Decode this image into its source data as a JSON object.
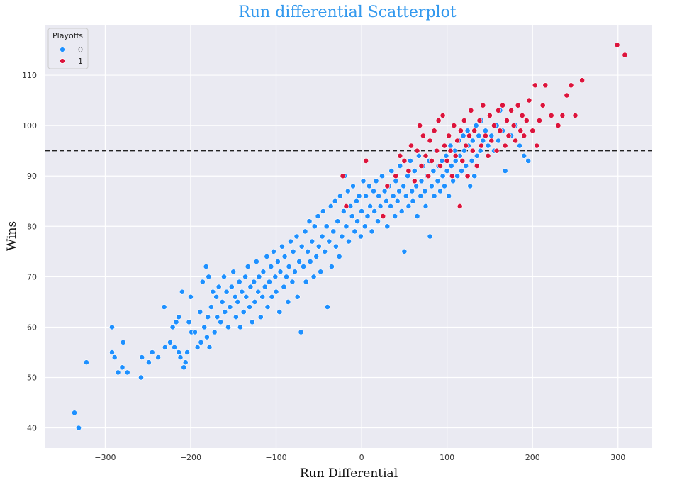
{
  "chart_data": {
    "type": "scatter",
    "title": "Run differential Scatterplot",
    "xlabel": "Run Differential",
    "ylabel": "Wins",
    "xlim": [
      -370,
      340
    ],
    "ylim": [
      36,
      120
    ],
    "xticks": [
      -300,
      -200,
      -100,
      0,
      100,
      200,
      300
    ],
    "yticks": [
      40,
      50,
      60,
      70,
      80,
      90,
      100,
      110
    ],
    "grid": true,
    "legend": {
      "title": "Playoffs",
      "placement": "top-left",
      "entries": [
        {
          "label": "0",
          "color": "#1e90ff"
        },
        {
          "label": "1",
          "color": "#dc143c"
        }
      ]
    },
    "reference_line": {
      "y": 95,
      "style": "dashed",
      "color": "#222222"
    },
    "series": [
      {
        "name": "0",
        "color": "#1e90ff",
        "points": [
          [
            -336,
            43
          ],
          [
            -331,
            40
          ],
          [
            -322,
            53
          ],
          [
            -292,
            60
          ],
          [
            -292,
            55
          ],
          [
            -289,
            54
          ],
          [
            -285,
            51
          ],
          [
            -280,
            52
          ],
          [
            -279,
            57
          ],
          [
            -274,
            51
          ],
          [
            -258,
            50
          ],
          [
            -257,
            54
          ],
          [
            -249,
            53
          ],
          [
            -245,
            55
          ],
          [
            -238,
            54
          ],
          [
            -231,
            64
          ],
          [
            -230,
            56
          ],
          [
            -224,
            57
          ],
          [
            -221,
            60
          ],
          [
            -219,
            56
          ],
          [
            -217,
            61
          ],
          [
            -214,
            62
          ],
          [
            -214,
            55
          ],
          [
            -212,
            54
          ],
          [
            -210,
            67
          ],
          [
            -208,
            52
          ],
          [
            -206,
            53
          ],
          [
            -204,
            55
          ],
          [
            -202,
            61
          ],
          [
            -200,
            66
          ],
          [
            -199,
            59
          ],
          [
            -195,
            59
          ],
          [
            -192,
            56
          ],
          [
            -189,
            63
          ],
          [
            -188,
            57
          ],
          [
            -186,
            69
          ],
          [
            -184,
            60
          ],
          [
            -182,
            72
          ],
          [
            -181,
            58
          ],
          [
            -180,
            62
          ],
          [
            -179,
            70
          ],
          [
            -178,
            56
          ],
          [
            -176,
            64
          ],
          [
            -174,
            67
          ],
          [
            -172,
            59
          ],
          [
            -170,
            66
          ],
          [
            -169,
            62
          ],
          [
            -167,
            68
          ],
          [
            -165,
            61
          ],
          [
            -163,
            65
          ],
          [
            -161,
            70
          ],
          [
            -160,
            63
          ],
          [
            -158,
            67
          ],
          [
            -156,
            60
          ],
          [
            -154,
            64
          ],
          [
            -152,
            68
          ],
          [
            -150,
            71
          ],
          [
            -148,
            66
          ],
          [
            -147,
            62
          ],
          [
            -145,
            65
          ],
          [
            -143,
            69
          ],
          [
            -142,
            60
          ],
          [
            -140,
            67
          ],
          [
            -138,
            63
          ],
          [
            -136,
            70
          ],
          [
            -135,
            66
          ],
          [
            -133,
            72
          ],
          [
            -131,
            64
          ],
          [
            -130,
            68
          ],
          [
            -128,
            61
          ],
          [
            -126,
            69
          ],
          [
            -125,
            65
          ],
          [
            -123,
            73
          ],
          [
            -121,
            67
          ],
          [
            -120,
            70
          ],
          [
            -118,
            62
          ],
          [
            -116,
            66
          ],
          [
            -115,
            71
          ],
          [
            -113,
            68
          ],
          [
            -111,
            74
          ],
          [
            -110,
            64
          ],
          [
            -108,
            69
          ],
          [
            -106,
            72
          ],
          [
            -105,
            66
          ],
          [
            -103,
            75
          ],
          [
            -101,
            70
          ],
          [
            -100,
            67
          ],
          [
            -98,
            73
          ],
          [
            -96,
            63
          ],
          [
            -95,
            71
          ],
          [
            -93,
            76
          ],
          [
            -91,
            68
          ],
          [
            -90,
            74
          ],
          [
            -88,
            70
          ],
          [
            -86,
            65
          ],
          [
            -85,
            72
          ],
          [
            -83,
            77
          ],
          [
            -81,
            69
          ],
          [
            -80,
            75
          ],
          [
            -78,
            71
          ],
          [
            -76,
            78
          ],
          [
            -75,
            66
          ],
          [
            -73,
            73
          ],
          [
            -71,
            59
          ],
          [
            -70,
            76
          ],
          [
            -68,
            72
          ],
          [
            -66,
            79
          ],
          [
            -65,
            69
          ],
          [
            -63,
            75
          ],
          [
            -61,
            81
          ],
          [
            -60,
            73
          ],
          [
            -58,
            77
          ],
          [
            -56,
            70
          ],
          [
            -55,
            80
          ],
          [
            -53,
            74
          ],
          [
            -51,
            82
          ],
          [
            -50,
            76
          ],
          [
            -48,
            71
          ],
          [
            -46,
            78
          ],
          [
            -45,
            83
          ],
          [
            -43,
            75
          ],
          [
            -41,
            80
          ],
          [
            -40,
            64
          ],
          [
            -38,
            77
          ],
          [
            -36,
            84
          ],
          [
            -35,
            72
          ],
          [
            -33,
            79
          ],
          [
            -31,
            85
          ],
          [
            -30,
            76
          ],
          [
            -28,
            81
          ],
          [
            -26,
            74
          ],
          [
            -25,
            86
          ],
          [
            -23,
            78
          ],
          [
            -21,
            83
          ],
          [
            -20,
            90
          ],
          [
            -18,
            80
          ],
          [
            -16,
            87
          ],
          [
            -15,
            77
          ],
          [
            -13,
            84
          ],
          [
            -11,
            82
          ],
          [
            -10,
            88
          ],
          [
            -8,
            79
          ],
          [
            -6,
            85
          ],
          [
            -5,
            81
          ],
          [
            -3,
            86
          ],
          [
            -1,
            78
          ],
          [
            0,
            83
          ],
          [
            2,
            89
          ],
          [
            4,
            80
          ],
          [
            5,
            86
          ],
          [
            7,
            82
          ],
          [
            9,
            88
          ],
          [
            10,
            84
          ],
          [
            12,
            79
          ],
          [
            14,
            87
          ],
          [
            15,
            83
          ],
          [
            17,
            89
          ],
          [
            19,
            81
          ],
          [
            20,
            86
          ],
          [
            22,
            84
          ],
          [
            24,
            90
          ],
          [
            25,
            82
          ],
          [
            27,
            87
          ],
          [
            29,
            85
          ],
          [
            30,
            80
          ],
          [
            32,
            88
          ],
          [
            34,
            84
          ],
          [
            35,
            91
          ],
          [
            37,
            86
          ],
          [
            39,
            82
          ],
          [
            40,
            89
          ],
          [
            42,
            85
          ],
          [
            44,
            87
          ],
          [
            45,
            92
          ],
          [
            47,
            83
          ],
          [
            49,
            88
          ],
          [
            50,
            75
          ],
          [
            52,
            86
          ],
          [
            54,
            90
          ],
          [
            55,
            84
          ],
          [
            57,
            93
          ],
          [
            59,
            87
          ],
          [
            60,
            85
          ],
          [
            62,
            91
          ],
          [
            64,
            88
          ],
          [
            65,
            82
          ],
          [
            67,
            94
          ],
          [
            69,
            86
          ],
          [
            70,
            89
          ],
          [
            72,
            92
          ],
          [
            74,
            87
          ],
          [
            75,
            84
          ],
          [
            77,
            90
          ],
          [
            79,
            93
          ],
          [
            80,
            78
          ],
          [
            82,
            88
          ],
          [
            84,
            91
          ],
          [
            85,
            86
          ],
          [
            87,
            95
          ],
          [
            89,
            89
          ],
          [
            90,
            92
          ],
          [
            92,
            87
          ],
          [
            94,
            93
          ],
          [
            95,
            90
          ],
          [
            97,
            88
          ],
          [
            99,
            94
          ],
          [
            100,
            91
          ],
          [
            102,
            86
          ],
          [
            104,
            96
          ],
          [
            105,
            92
          ],
          [
            107,
            89
          ],
          [
            109,
            95
          ],
          [
            110,
            93
          ],
          [
            112,
            90
          ],
          [
            114,
            97
          ],
          [
            115,
            94
          ],
          [
            117,
            91
          ],
          [
            119,
            98
          ],
          [
            120,
            95
          ],
          [
            122,
            92
          ],
          [
            124,
            99
          ],
          [
            125,
            96
          ],
          [
            127,
            88
          ],
          [
            129,
            93
          ],
          [
            130,
            97
          ],
          [
            132,
            90
          ],
          [
            134,
            100
          ],
          [
            135,
            94
          ],
          [
            137,
            98
          ],
          [
            139,
            95
          ],
          [
            140,
            101
          ],
          [
            142,
            97
          ],
          [
            145,
            99
          ],
          [
            148,
            96
          ],
          [
            150,
            102
          ],
          [
            152,
            98
          ],
          [
            155,
            95
          ],
          [
            158,
            100
          ],
          [
            160,
            97
          ],
          [
            162,
            103
          ],
          [
            165,
            99
          ],
          [
            168,
            91
          ],
          [
            170,
            101
          ],
          [
            175,
            98
          ],
          [
            180,
            100
          ],
          [
            185,
            96
          ],
          [
            190,
            94
          ],
          [
            195,
            93
          ]
        ]
      },
      {
        "name": "1",
        "color": "#dc143c",
        "points": [
          [
            -22,
            90
          ],
          [
            -18,
            84
          ],
          [
            5,
            93
          ],
          [
            25,
            82
          ],
          [
            30,
            88
          ],
          [
            40,
            90
          ],
          [
            45,
            94
          ],
          [
            50,
            93
          ],
          [
            55,
            91
          ],
          [
            58,
            96
          ],
          [
            62,
            89
          ],
          [
            65,
            95
          ],
          [
            68,
            100
          ],
          [
            70,
            92
          ],
          [
            72,
            98
          ],
          [
            75,
            94
          ],
          [
            78,
            90
          ],
          [
            80,
            97
          ],
          [
            82,
            93
          ],
          [
            85,
            99
          ],
          [
            88,
            95
          ],
          [
            90,
            101
          ],
          [
            92,
            92
          ],
          [
            95,
            102
          ],
          [
            97,
            96
          ],
          [
            100,
            93
          ],
          [
            102,
            98
          ],
          [
            104,
            95
          ],
          [
            106,
            90
          ],
          [
            108,
            100
          ],
          [
            110,
            94
          ],
          [
            112,
            97
          ],
          [
            115,
            84
          ],
          [
            116,
            99
          ],
          [
            118,
            93
          ],
          [
            120,
            101
          ],
          [
            122,
            96
          ],
          [
            124,
            90
          ],
          [
            126,
            98
          ],
          [
            128,
            103
          ],
          [
            130,
            95
          ],
          [
            132,
            99
          ],
          [
            135,
            92
          ],
          [
            138,
            101
          ],
          [
            140,
            96
          ],
          [
            142,
            104
          ],
          [
            145,
            98
          ],
          [
            148,
            94
          ],
          [
            150,
            102
          ],
          [
            152,
            97
          ],
          [
            155,
            100
          ],
          [
            158,
            95
          ],
          [
            160,
            103
          ],
          [
            162,
            99
          ],
          [
            165,
            104
          ],
          [
            168,
            96
          ],
          [
            170,
            101
          ],
          [
            172,
            98
          ],
          [
            175,
            103
          ],
          [
            178,
            100
          ],
          [
            180,
            97
          ],
          [
            183,
            104
          ],
          [
            186,
            99
          ],
          [
            188,
            102
          ],
          [
            190,
            98
          ],
          [
            193,
            101
          ],
          [
            196,
            105
          ],
          [
            200,
            99
          ],
          [
            203,
            108
          ],
          [
            205,
            96
          ],
          [
            208,
            101
          ],
          [
            212,
            104
          ],
          [
            215,
            108
          ],
          [
            222,
            102
          ],
          [
            230,
            100
          ],
          [
            235,
            102
          ],
          [
            240,
            106
          ],
          [
            245,
            108
          ],
          [
            250,
            102
          ],
          [
            258,
            109
          ],
          [
            299,
            116
          ],
          [
            308,
            114
          ]
        ]
      }
    ]
  }
}
